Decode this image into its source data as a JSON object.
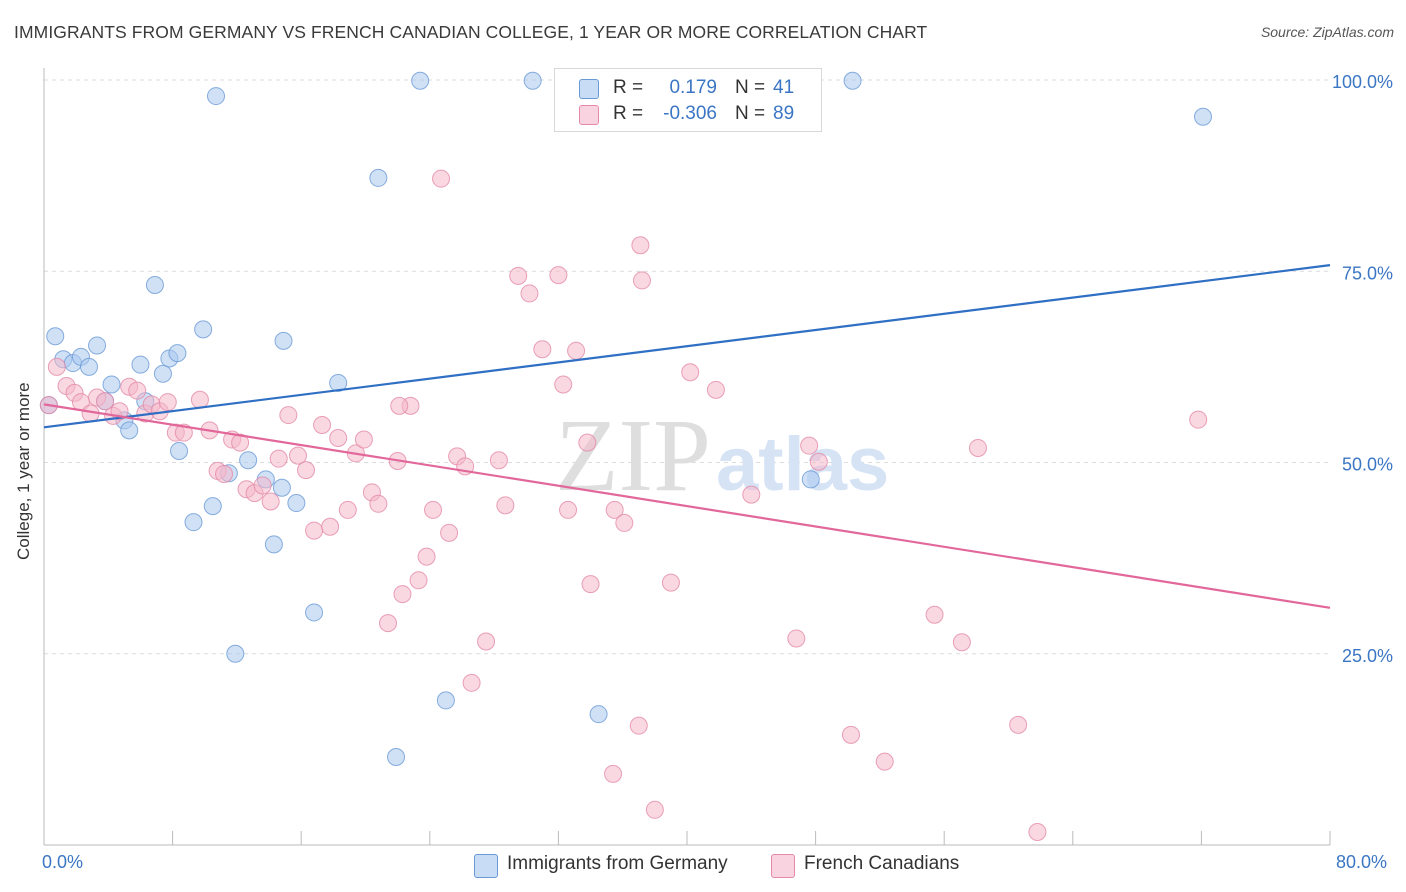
{
  "title": "IMMIGRANTS FROM GERMANY VS FRENCH CANADIAN COLLEGE, 1 YEAR OR MORE CORRELATION CHART",
  "source": "Source: ZipAtlas.com",
  "watermark": {
    "zip": "ZIP",
    "atlas": "atlas"
  },
  "legend": {
    "rows": [
      {
        "r_label": "R =",
        "r_value": "0.179",
        "n_label": "N =",
        "n_value": "41",
        "color": "#a9c8ef"
      },
      {
        "r_label": "R =",
        "r_value": "-0.306",
        "n_label": "N =",
        "n_value": "89",
        "color": "#f4b8cb"
      }
    ]
  },
  "bottom_legend": [
    {
      "label": "Immigrants from Germany",
      "color": "#a9c8ef"
    },
    {
      "label": "French Canadians",
      "color": "#f4b8cb"
    }
  ],
  "chart_data": {
    "type": "scatter",
    "title": "IMMIGRANTS FROM GERMANY VS FRENCH CANADIAN COLLEGE, 1 YEAR OR MORE CORRELATION CHART",
    "xlabel": "",
    "ylabel": "College, 1 year or more",
    "xlim": [
      0,
      80
    ],
    "ylim": [
      0,
      100
    ],
    "x_tick_labels": [
      "0.0%",
      "80.0%"
    ],
    "y_tick_labels": [
      "25.0%",
      "50.0%",
      "75.0%",
      "100.0%"
    ],
    "y_ticks": [
      25,
      50,
      75,
      100
    ],
    "grid": true,
    "legend_position": "top-center",
    "series": [
      {
        "name": "Immigrants from Germany",
        "color": "#a9c8ef",
        "stroke": "#6a9ad6",
        "trend_color": "#2f6fc4",
        "trend": [
          [
            0,
            54.6
          ],
          [
            80,
            75.8
          ]
        ],
        "points": [
          [
            0.3,
            57.5
          ],
          [
            0.7,
            66.5
          ],
          [
            1.2,
            63.5
          ],
          [
            1.8,
            63.0
          ],
          [
            2.3,
            63.8
          ],
          [
            2.8,
            62.5
          ],
          [
            3.3,
            65.3
          ],
          [
            4.2,
            60.2
          ],
          [
            5.0,
            55.5
          ],
          [
            5.3,
            54.2
          ],
          [
            3.8,
            58.0
          ],
          [
            6.0,
            62.8
          ],
          [
            6.3,
            58.0
          ],
          [
            6.9,
            73.2
          ],
          [
            7.4,
            61.6
          ],
          [
            7.8,
            63.6
          ],
          [
            8.3,
            64.3
          ],
          [
            8.4,
            51.5
          ],
          [
            9.3,
            42.2
          ],
          [
            9.9,
            67.4
          ],
          [
            10.5,
            44.3
          ],
          [
            10.7,
            97.9
          ],
          [
            11.5,
            48.6
          ],
          [
            11.9,
            25.0
          ],
          [
            12.7,
            50.3
          ],
          [
            13.8,
            47.8
          ],
          [
            14.3,
            39.3
          ],
          [
            14.8,
            46.7
          ],
          [
            14.9,
            65.9
          ],
          [
            15.7,
            44.7
          ],
          [
            16.8,
            30.4
          ],
          [
            18.3,
            60.4
          ],
          [
            20.8,
            87.2
          ],
          [
            21.9,
            11.5
          ],
          [
            23.4,
            99.9
          ],
          [
            25.0,
            18.9
          ],
          [
            30.4,
            99.9
          ],
          [
            34.5,
            17.1
          ],
          [
            47.7,
            47.8
          ],
          [
            50.3,
            99.9
          ],
          [
            72.1,
            95.2
          ]
        ]
      },
      {
        "name": "French Canadians",
        "color": "#f4b8cb",
        "stroke": "#e48aa8",
        "trend_color": "#e2679a",
        "trend": [
          [
            0,
            57.6
          ],
          [
            80,
            31.0
          ]
        ],
        "points": [
          [
            0.3,
            57.5
          ],
          [
            0.8,
            62.5
          ],
          [
            1.4,
            60.0
          ],
          [
            1.9,
            59.1
          ],
          [
            2.3,
            57.9
          ],
          [
            2.9,
            56.4
          ],
          [
            3.3,
            58.5
          ],
          [
            3.8,
            58.0
          ],
          [
            4.3,
            56.1
          ],
          [
            4.7,
            56.7
          ],
          [
            5.3,
            59.9
          ],
          [
            5.8,
            59.4
          ],
          [
            6.3,
            56.4
          ],
          [
            6.7,
            57.6
          ],
          [
            7.2,
            56.7
          ],
          [
            7.7,
            57.9
          ],
          [
            8.2,
            53.9
          ],
          [
            8.7,
            53.9
          ],
          [
            9.7,
            58.2
          ],
          [
            10.3,
            54.2
          ],
          [
            10.8,
            48.9
          ],
          [
            11.2,
            48.5
          ],
          [
            11.7,
            53.0
          ],
          [
            12.2,
            52.6
          ],
          [
            12.6,
            46.5
          ],
          [
            13.1,
            46.0
          ],
          [
            13.6,
            47.0
          ],
          [
            14.1,
            44.9
          ],
          [
            14.6,
            50.5
          ],
          [
            15.2,
            56.2
          ],
          [
            15.8,
            50.9
          ],
          [
            16.3,
            49.0
          ],
          [
            16.8,
            41.1
          ],
          [
            17.3,
            54.9
          ],
          [
            17.8,
            41.6
          ],
          [
            18.3,
            53.2
          ],
          [
            18.9,
            43.8
          ],
          [
            19.4,
            51.2
          ],
          [
            19.9,
            53.0
          ],
          [
            20.4,
            46.1
          ],
          [
            20.8,
            44.6
          ],
          [
            21.4,
            29.0
          ],
          [
            22.0,
            50.2
          ],
          [
            22.3,
            32.8
          ],
          [
            22.8,
            57.4
          ],
          [
            23.3,
            34.6
          ],
          [
            23.8,
            37.7
          ],
          [
            24.2,
            43.8
          ],
          [
            24.7,
            87.1
          ],
          [
            25.2,
            40.8
          ],
          [
            25.7,
            50.8
          ],
          [
            26.2,
            49.5
          ],
          [
            26.6,
            21.2
          ],
          [
            27.5,
            26.6
          ],
          [
            28.3,
            50.3
          ],
          [
            28.7,
            44.4
          ],
          [
            29.5,
            74.4
          ],
          [
            30.2,
            72.1
          ],
          [
            31.0,
            64.8
          ],
          [
            32.0,
            74.5
          ],
          [
            32.3,
            60.2
          ],
          [
            32.6,
            43.8
          ],
          [
            33.1,
            64.6
          ],
          [
            34.0,
            34.1
          ],
          [
            35.4,
            9.3
          ],
          [
            35.5,
            43.8
          ],
          [
            36.1,
            42.1
          ],
          [
            37.0,
            15.6
          ],
          [
            37.1,
            78.4
          ],
          [
            37.2,
            73.8
          ],
          [
            38.0,
            4.6
          ],
          [
            39.0,
            34.3
          ],
          [
            40.2,
            61.8
          ],
          [
            41.8,
            59.5
          ],
          [
            44.0,
            45.8
          ],
          [
            46.8,
            27.0
          ],
          [
            47.6,
            52.2
          ],
          [
            48.2,
            50.1
          ],
          [
            50.2,
            14.4
          ],
          [
            52.3,
            10.9
          ],
          [
            55.4,
            30.1
          ],
          [
            57.1,
            26.5
          ],
          [
            58.1,
            51.9
          ],
          [
            60.6,
            15.7
          ],
          [
            61.8,
            1.7
          ],
          [
            71.8,
            55.6
          ],
          [
            37.8,
            98.2
          ],
          [
            22.1,
            57.4
          ],
          [
            33.8,
            52.6
          ]
        ]
      }
    ]
  }
}
